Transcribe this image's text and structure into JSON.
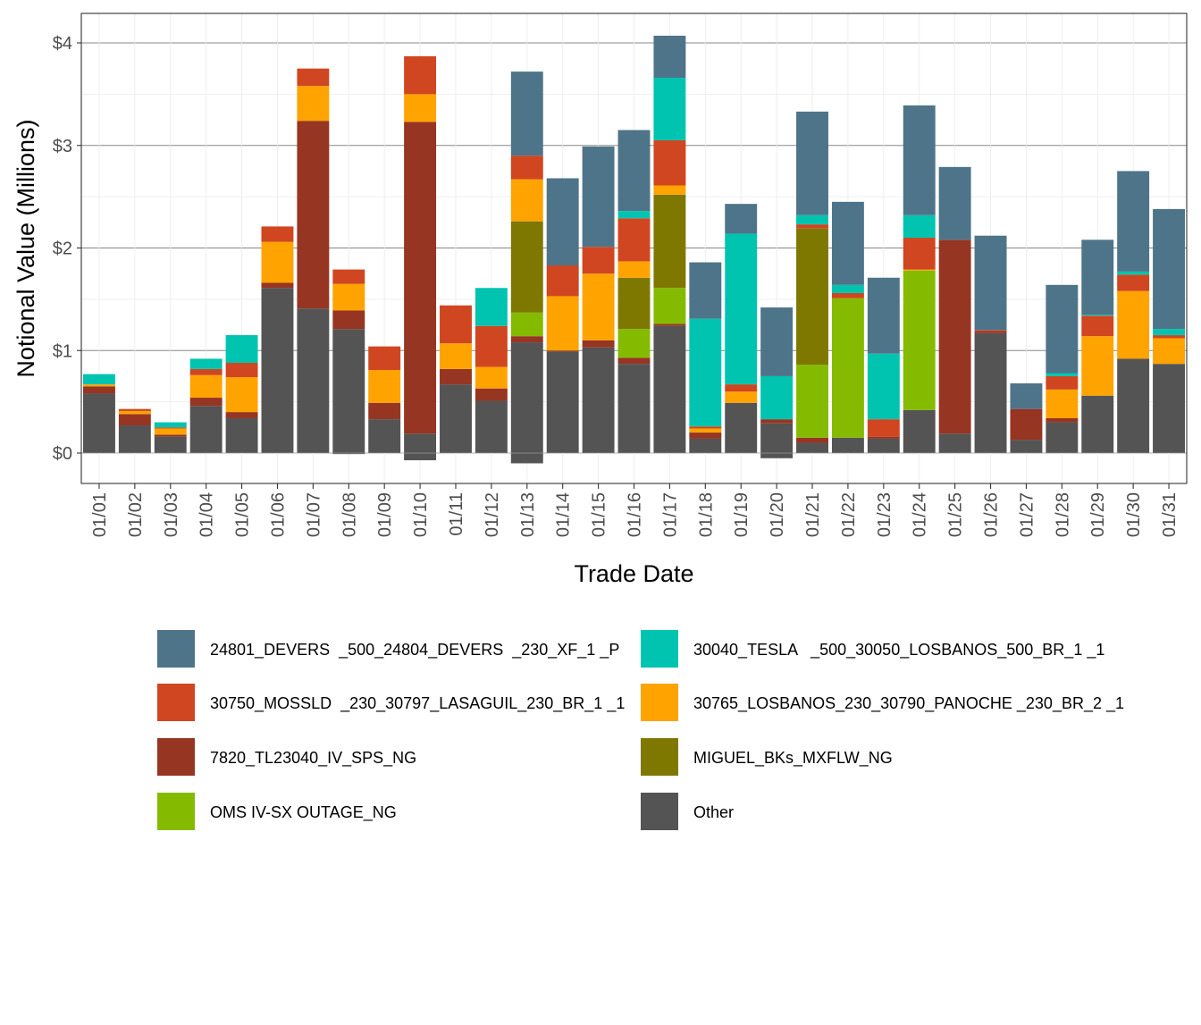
{
  "chart_data": {
    "type": "bar",
    "stacked": true,
    "xlabel": "Trade Date",
    "ylabel": "Notional Value (Millions)",
    "ylim": [
      -0.3,
      4.3
    ],
    "yticks": [
      0,
      1,
      2,
      3,
      4
    ],
    "ytick_labels": [
      "$0",
      "$1",
      "$2",
      "$3",
      "$4"
    ],
    "grid": true,
    "legend_position": "bottom",
    "categories": [
      "01/01",
      "01/02",
      "01/03",
      "01/04",
      "01/05",
      "01/06",
      "01/07",
      "01/08",
      "01/09",
      "01/10",
      "01/11",
      "01/12",
      "01/13",
      "01/14",
      "01/15",
      "01/16",
      "01/17",
      "01/18",
      "01/19",
      "01/20",
      "01/21",
      "01/22",
      "01/23",
      "01/24",
      "01/25",
      "01/26",
      "01/27",
      "01/28",
      "01/29",
      "01/30",
      "01/31"
    ],
    "series": [
      {
        "name": "Other",
        "color": "#545454",
        "values": [
          0.58,
          0.27,
          0.16,
          0.46,
          0.34,
          1.61,
          1.41,
          1.21,
          0.33,
          0.19,
          0.67,
          0.51,
          1.08,
          0.99,
          1.03,
          0.87,
          1.24,
          0.14,
          0.49,
          0.29,
          0.1,
          0.15,
          0.14,
          0.42,
          0.19,
          1.17,
          0.13,
          0.3,
          0.56,
          0.92,
          0.87
        ]
      },
      {
        "name": "7820_TL23040_IV_SPS_NG",
        "color": "#963522",
        "values": [
          0.07,
          0.11,
          0.02,
          0.08,
          0.06,
          0.05,
          1.83,
          0.18,
          0.16,
          3.04,
          0.15,
          0.12,
          0.06,
          0.01,
          0.07,
          0.06,
          0.02,
          0.06,
          0,
          0.04,
          0.05,
          0,
          0.02,
          0,
          1.89,
          0.02,
          0.3,
          0.04,
          0,
          0,
          0
        ]
      },
      {
        "name": "OMS IV-SX OUTAGE_NG",
        "color": "#84BB00",
        "values": [
          0,
          0,
          0,
          0,
          0,
          0,
          0,
          0,
          0,
          0,
          0,
          0,
          0.23,
          0,
          0,
          0.28,
          0.35,
          0,
          0,
          0,
          0.71,
          1.36,
          0,
          1.36,
          0,
          0,
          0,
          0,
          0,
          0,
          0
        ]
      },
      {
        "name": "MIGUEL_BKs_MXFLW_NG",
        "color": "#7F7800",
        "values": [
          0,
          0,
          0,
          0,
          0,
          0,
          0,
          0,
          0,
          0,
          0,
          0,
          0.89,
          0,
          0,
          0.5,
          0.91,
          0,
          0,
          0,
          1.33,
          0,
          0,
          0,
          0,
          0,
          0,
          0,
          0,
          0,
          0
        ]
      },
      {
        "name": "30765_LOSBANOS_230_30790_PANOCHE _230_BR_2 _1",
        "color": "#FFA300",
        "values": [
          0.02,
          0.03,
          0.06,
          0.22,
          0.34,
          0.4,
          0.34,
          0.26,
          0.32,
          0.27,
          0.25,
          0.21,
          0.41,
          0.53,
          0.65,
          0.16,
          0.09,
          0.04,
          0.11,
          0,
          0,
          0,
          0,
          0.01,
          0,
          0,
          0,
          0.28,
          0.58,
          0.66,
          0.25
        ]
      },
      {
        "name": "30750_MOSSLD  _230_30797_LASAGUIL_230_BR_1 _1",
        "color": "#D04620",
        "values": [
          0,
          0.02,
          0.01,
          0.06,
          0.14,
          0.15,
          0.17,
          0.14,
          0.23,
          0.37,
          0.37,
          0.4,
          0.23,
          0.3,
          0.26,
          0.42,
          0.44,
          0.02,
          0.07,
          0,
          0.04,
          0.05,
          0.17,
          0.31,
          0,
          0.01,
          0,
          0.13,
          0.2,
          0.16,
          0.03
        ]
      },
      {
        "name": "30040_TESLA   _500_30050_LOSBANOS_500_BR_1 _1",
        "color": "#00C4B0",
        "values": [
          0.1,
          0,
          0.05,
          0.1,
          0.27,
          0,
          0,
          0,
          0,
          0,
          0,
          0.37,
          0,
          0,
          0,
          0.07,
          0.61,
          1.05,
          1.47,
          0.42,
          0.09,
          0.08,
          0.64,
          0.22,
          0,
          0,
          0,
          0.03,
          0.01,
          0.03,
          0.06
        ]
      },
      {
        "name": "24801_DEVERS  _500_24804_DEVERS  _230_XF_1 _P",
        "color": "#4E7489",
        "values": [
          0,
          0,
          0,
          0,
          0,
          0,
          0,
          0,
          0,
          0,
          0,
          0,
          0.82,
          0.85,
          0.98,
          0.79,
          0.41,
          0.55,
          0.29,
          0.67,
          1.01,
          0.81,
          0.74,
          1.07,
          0.71,
          0.92,
          0.25,
          0.86,
          0.73,
          0.98,
          1.17
        ]
      },
      {
        "name": "Other (negative)",
        "color": "#545454",
        "values": [
          0,
          0,
          0,
          0,
          0,
          0,
          0,
          -0.01,
          0,
          -0.07,
          0,
          0,
          -0.1,
          0,
          0,
          0,
          0,
          0,
          0,
          -0.05,
          0,
          0,
          0,
          0,
          0,
          0,
          0,
          0,
          0,
          0,
          0
        ]
      }
    ],
    "legend": [
      {
        "name": "24801_DEVERS  _500_24804_DEVERS  _230_XF_1 _P",
        "color": "#4E7489"
      },
      {
        "name": "30040_TESLA   _500_30050_LOSBANOS_500_BR_1 _1",
        "color": "#00C4B0"
      },
      {
        "name": "30750_MOSSLD  _230_30797_LASAGUIL_230_BR_1 _1",
        "color": "#D04620"
      },
      {
        "name": "30765_LOSBANOS_230_30790_PANOCHE _230_BR_2 _1",
        "color": "#FFA300"
      },
      {
        "name": "7820_TL23040_IV_SPS_NG",
        "color": "#963522"
      },
      {
        "name": "MIGUEL_BKs_MXFLW_NG",
        "color": "#7F7800"
      },
      {
        "name": "OMS IV-SX OUTAGE_NG",
        "color": "#84BB00"
      },
      {
        "name": "Other",
        "color": "#545454"
      }
    ]
  }
}
